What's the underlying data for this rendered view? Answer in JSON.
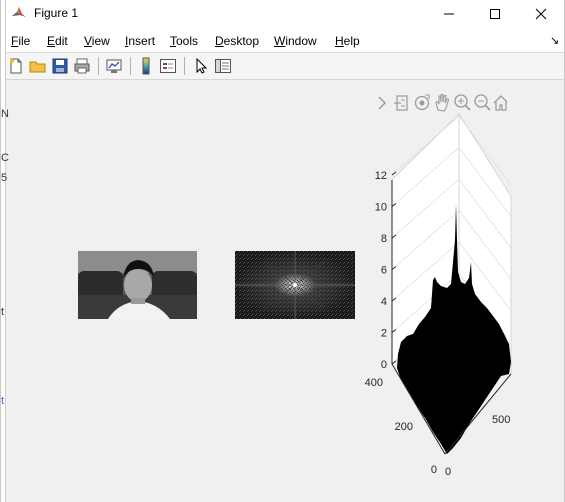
{
  "window": {
    "title": "Figure 1",
    "controls": [
      "minimize",
      "maximize",
      "close"
    ]
  },
  "menubar": {
    "items": [
      {
        "label": "File",
        "accel": "F",
        "rest": "ile"
      },
      {
        "label": "Edit",
        "accel": "E",
        "rest": "dit"
      },
      {
        "label": "View",
        "accel": "V",
        "rest": "iew"
      },
      {
        "label": "Insert",
        "accel": "I",
        "rest": "nsert"
      },
      {
        "label": "Tools",
        "accel": "T",
        "rest": "ools"
      },
      {
        "label": "Desktop",
        "accel": "D",
        "rest": "esktop"
      },
      {
        "label": "Window",
        "accel": "W",
        "rest": "indow"
      },
      {
        "label": "Help",
        "accel": "H",
        "rest": "elp"
      }
    ],
    "dock_arrow": "↘"
  },
  "toolbar": {
    "icons": [
      "new-figure-icon",
      "open-file-icon",
      "save-icon",
      "print-icon",
      "link-plot-icon",
      "colorbar-icon",
      "legend-icon",
      "edit-plot-icon",
      "property-inspector-icon"
    ]
  },
  "axes_toolbar": {
    "icons": [
      "expand-chevron-icon",
      "brush-icon",
      "data-tip-icon",
      "pan-icon",
      "zoom-in-icon",
      "zoom-out-icon",
      "home-icon"
    ]
  },
  "images": [
    {
      "name": "grayscale-photo",
      "description_visible": true
    },
    {
      "name": "fft-spectrum-image",
      "description_visible": true
    }
  ],
  "chart_data": {
    "type": "surface",
    "z_ticks": [
      "0",
      "2",
      "4",
      "6",
      "8",
      "10",
      "12"
    ],
    "y_ticks": [
      "0",
      "200",
      "400"
    ],
    "x_ticks": [
      "0",
      "500"
    ],
    "zlim": [
      0,
      12
    ],
    "colors": {
      "surface": "#000000",
      "axes": "#262626",
      "grid": "#dcdcdc"
    }
  },
  "left_edge_fragments": [
    "N",
    "C",
    "5",
    "t",
    "t"
  ]
}
